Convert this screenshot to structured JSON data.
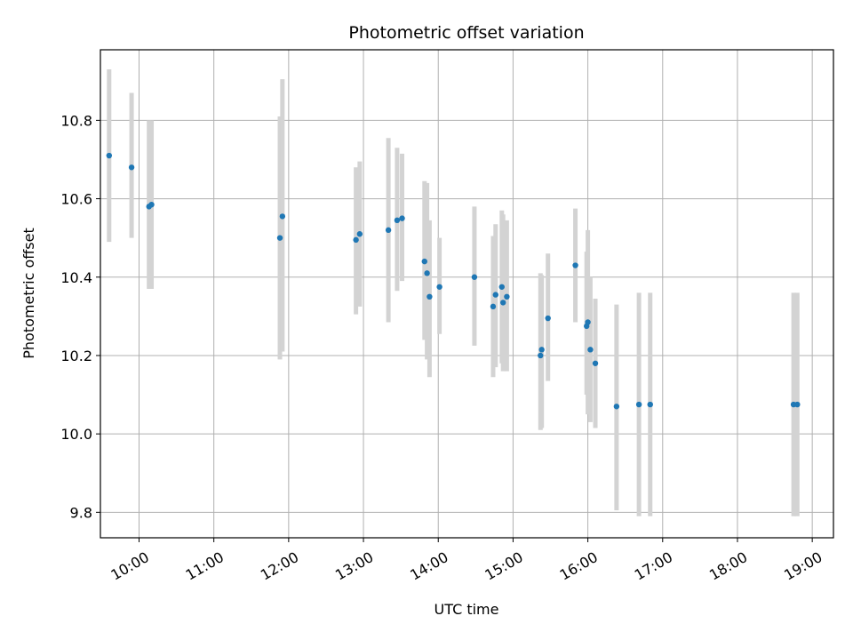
{
  "chart_data": {
    "type": "scatter",
    "title": "Photometric offset variation",
    "xlabel": "UTC time",
    "ylabel": "Photometric offset",
    "grid": true,
    "xlim": [
      "09:29",
      "19:17"
    ],
    "ylim": [
      9.735,
      10.98
    ],
    "x_ticks": [
      "10:00",
      "11:00",
      "12:00",
      "13:00",
      "14:00",
      "15:00",
      "16:00",
      "17:00",
      "18:00",
      "19:00"
    ],
    "y_ticks": [
      9.8,
      10.0,
      10.2,
      10.4,
      10.6,
      10.8
    ],
    "colors": {
      "point": "#1f77b4",
      "errorbar": "#d3d3d3",
      "grid": "#b0b0b0"
    },
    "points": [
      {
        "x": "09:36",
        "y": 10.71,
        "ylow": 10.49,
        "yhigh": 10.93
      },
      {
        "x": "09:54",
        "y": 10.68,
        "ylow": 10.5,
        "yhigh": 10.87
      },
      {
        "x": "10:08",
        "y": 10.58,
        "ylow": 10.37,
        "yhigh": 10.8
      },
      {
        "x": "10:10",
        "y": 10.585,
        "ylow": 10.37,
        "yhigh": 10.8
      },
      {
        "x": "11:53",
        "y": 10.5,
        "ylow": 10.19,
        "yhigh": 10.81
      },
      {
        "x": "11:55",
        "y": 10.555,
        "ylow": 10.21,
        "yhigh": 10.905
      },
      {
        "x": "12:54",
        "y": 10.495,
        "ylow": 10.305,
        "yhigh": 10.68
      },
      {
        "x": "12:57",
        "y": 10.51,
        "ylow": 10.325,
        "yhigh": 10.695
      },
      {
        "x": "13:20",
        "y": 10.52,
        "ylow": 10.285,
        "yhigh": 10.755
      },
      {
        "x": "13:27",
        "y": 10.545,
        "ylow": 10.365,
        "yhigh": 10.73
      },
      {
        "x": "13:31",
        "y": 10.55,
        "ylow": 10.39,
        "yhigh": 10.715
      },
      {
        "x": "13:49",
        "y": 10.44,
        "ylow": 10.24,
        "yhigh": 10.645
      },
      {
        "x": "13:51",
        "y": 10.41,
        "ylow": 10.19,
        "yhigh": 10.64
      },
      {
        "x": "13:53",
        "y": 10.35,
        "ylow": 10.145,
        "yhigh": 10.545
      },
      {
        "x": "14:01",
        "y": 10.375,
        "ylow": 10.255,
        "yhigh": 10.5
      },
      {
        "x": "14:29",
        "y": 10.4,
        "ylow": 10.225,
        "yhigh": 10.58
      },
      {
        "x": "14:44",
        "y": 10.325,
        "ylow": 10.145,
        "yhigh": 10.505
      },
      {
        "x": "14:46",
        "y": 10.355,
        "ylow": 10.17,
        "yhigh": 10.535
      },
      {
        "x": "14:51",
        "y": 10.375,
        "ylow": 10.18,
        "yhigh": 10.57
      },
      {
        "x": "14:52",
        "y": 10.335,
        "ylow": 10.16,
        "yhigh": 10.56
      },
      {
        "x": "14:55",
        "y": 10.35,
        "ylow": 10.16,
        "yhigh": 10.545
      },
      {
        "x": "15:22",
        "y": 10.2,
        "ylow": 10.01,
        "yhigh": 10.41
      },
      {
        "x": "15:23",
        "y": 10.215,
        "ylow": 10.015,
        "yhigh": 10.405
      },
      {
        "x": "15:28",
        "y": 10.295,
        "ylow": 10.135,
        "yhigh": 10.46
      },
      {
        "x": "15:50",
        "y": 10.43,
        "ylow": 10.285,
        "yhigh": 10.575
      },
      {
        "x": "15:59",
        "y": 10.275,
        "ylow": 10.1,
        "yhigh": 10.465
      },
      {
        "x": "16:00",
        "y": 10.285,
        "ylow": 10.05,
        "yhigh": 10.52
      },
      {
        "x": "16:02",
        "y": 10.215,
        "ylow": 10.03,
        "yhigh": 10.4
      },
      {
        "x": "16:06",
        "y": 10.18,
        "ylow": 10.015,
        "yhigh": 10.345
      },
      {
        "x": "16:23",
        "y": 10.07,
        "ylow": 9.805,
        "yhigh": 10.33
      },
      {
        "x": "16:41",
        "y": 10.075,
        "ylow": 9.79,
        "yhigh": 10.36
      },
      {
        "x": "16:50",
        "y": 10.075,
        "ylow": 9.79,
        "yhigh": 10.36
      },
      {
        "x": "18:45",
        "y": 10.075,
        "ylow": 9.79,
        "yhigh": 10.36
      },
      {
        "x": "18:48",
        "y": 10.075,
        "ylow": 9.79,
        "yhigh": 10.36
      }
    ]
  }
}
